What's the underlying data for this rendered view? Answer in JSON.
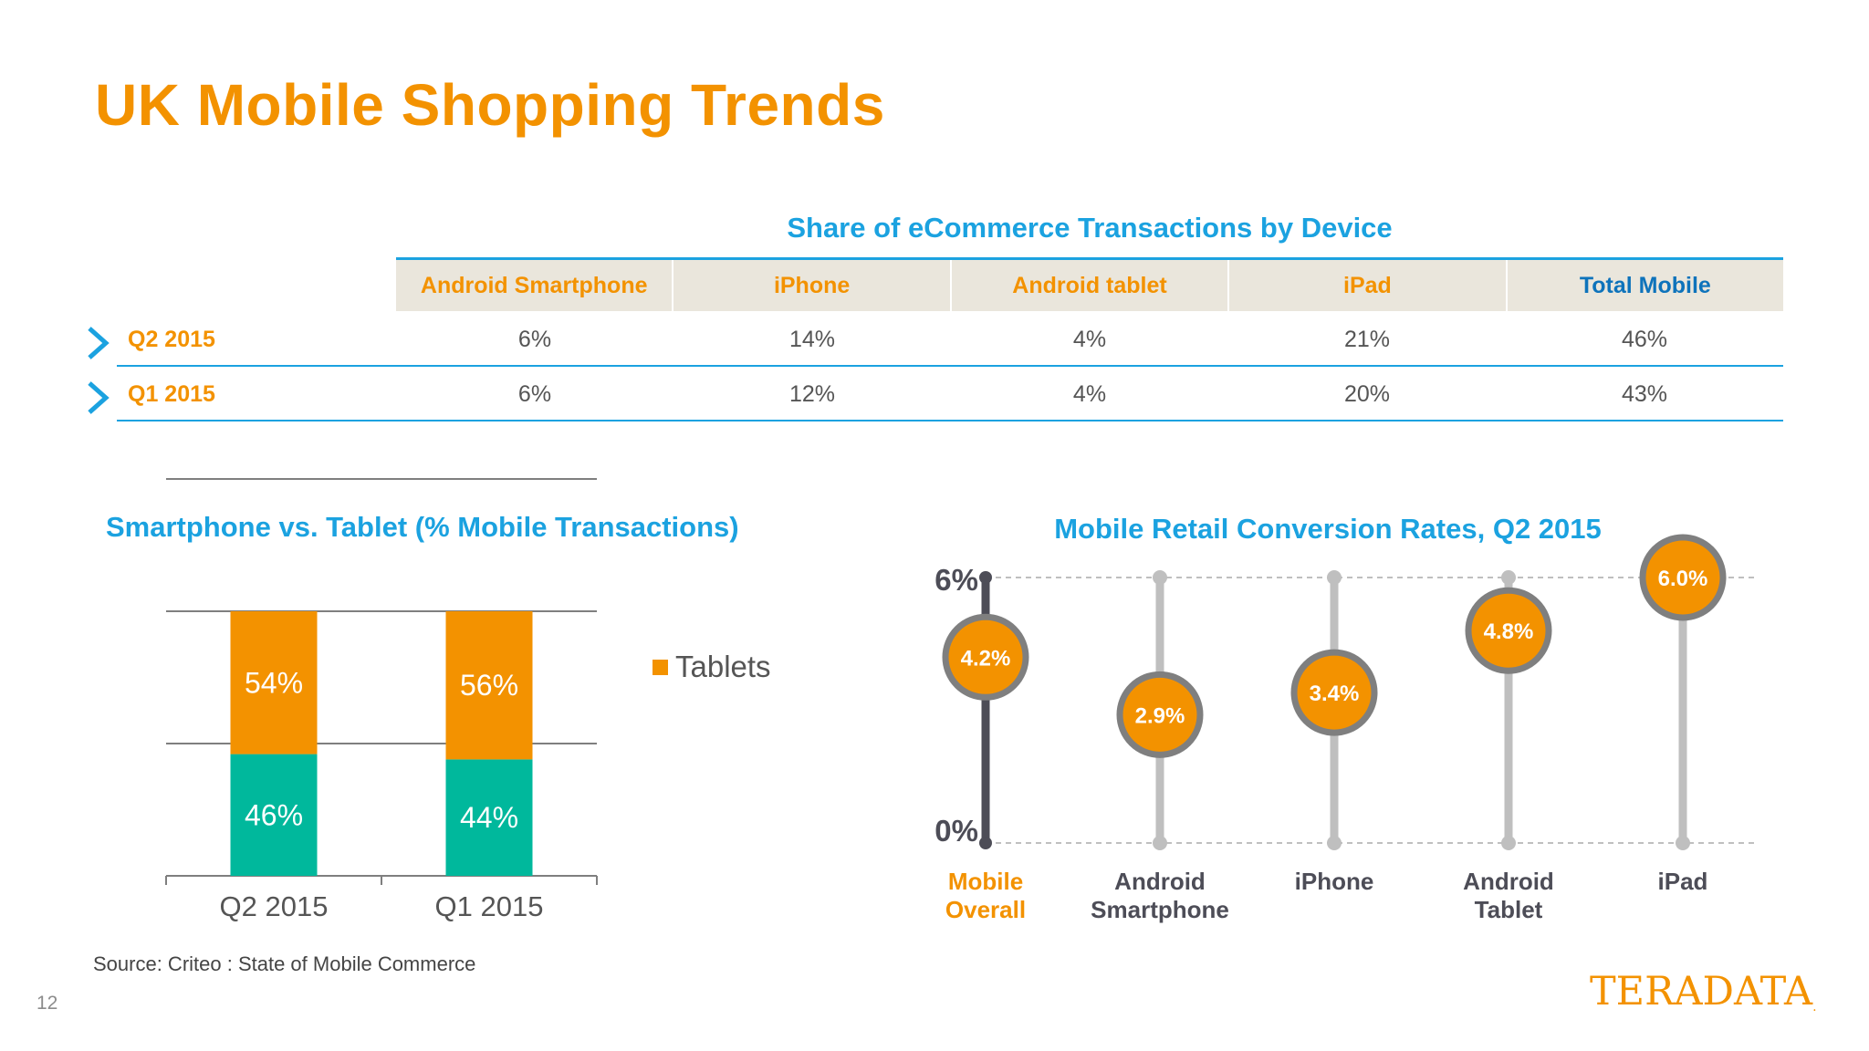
{
  "slide": {
    "title": "UK Mobile Shopping Trends",
    "source": "Source: Criteo : State of Mobile Commerce",
    "page_number": "12",
    "logo_text": "TERADATA",
    "logo_mark": "."
  },
  "table": {
    "title": "Share of eCommerce Transactions by Device",
    "columns": [
      "Android Smartphone",
      "iPhone",
      "Android tablet",
      "iPad",
      "Total Mobile"
    ],
    "rows": [
      {
        "label": "Q2 2015",
        "values": [
          "6%",
          "14%",
          "4%",
          "21%",
          "46%"
        ]
      },
      {
        "label": "Q1 2015",
        "values": [
          "6%",
          "12%",
          "4%",
          "20%",
          "43%"
        ]
      }
    ],
    "chevron_icon": "chevron-right-icon",
    "colors": {
      "header_bg": "#EAE6DC",
      "accent": "#1BA2E0",
      "orange": "#F39200",
      "total_header": "#0E73BB"
    }
  },
  "chart_data": [
    {
      "type": "bar",
      "stacked": true,
      "title": "Smartphone vs. Tablet (% Mobile Transactions)",
      "categories": [
        "Q2 2015",
        "Q1 2015"
      ],
      "series": [
        {
          "values": [
            46,
            44
          ],
          "labels": [
            "46%",
            "44%"
          ],
          "color": "#00B89C"
        },
        {
          "name": "Tablets",
          "values": [
            54,
            56
          ],
          "labels": [
            "54%",
            "56%"
          ],
          "color": "#F39200"
        }
      ],
      "ylim": [
        0,
        100
      ],
      "legend": "right"
    },
    {
      "type": "scatter",
      "title": "Mobile Retail Conversion Rates, Q2 2015",
      "categories": [
        "Mobile Overall",
        "Android Smartphone",
        "iPhone",
        "Android Tablet",
        "iPad"
      ],
      "values": [
        4.2,
        2.9,
        3.4,
        4.8,
        6.0
      ],
      "labels": [
        "4.2%",
        "2.9%",
        "3.4%",
        "4.8%",
        "6.0%"
      ],
      "ylim": [
        0,
        6
      ],
      "ytick_labels": [
        "0%",
        "6%"
      ],
      "highlight_category": "Mobile Overall",
      "colors": {
        "marker": "#F39200",
        "ring": "#7F7F7F",
        "stem": "#BFBFBF",
        "highlight_stem": "#4D4D57"
      }
    }
  ]
}
